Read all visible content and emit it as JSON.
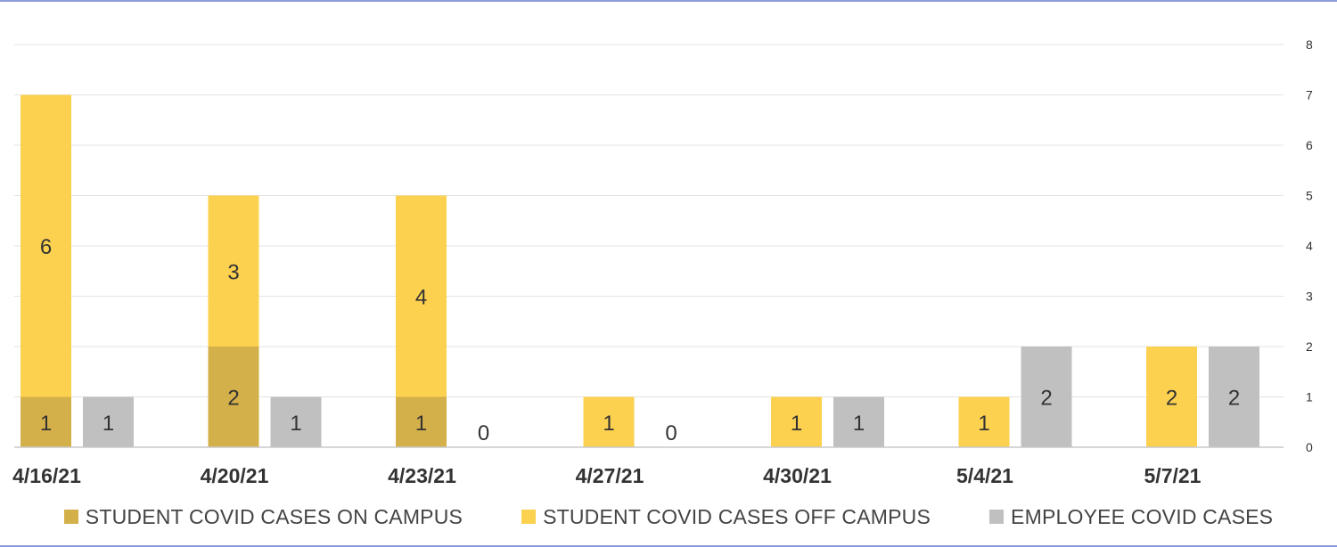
{
  "chart_data": {
    "type": "bar",
    "categories": [
      "4/16/21",
      "4/20/21",
      "4/23/21",
      "4/27/21",
      "4/30/21",
      "5/4/21",
      "5/7/21"
    ],
    "series": [
      {
        "name": "STUDENT COVID CASES ON CAMPUS",
        "values": [
          1,
          2,
          1,
          0,
          0,
          0,
          0
        ],
        "color": "#d4b04a",
        "stack": "students"
      },
      {
        "name": "STUDENT COVID CASES OFF CAMPUS",
        "values": [
          6,
          3,
          4,
          1,
          1,
          1,
          2
        ],
        "color": "#fcd14f",
        "stack": "students"
      },
      {
        "name": "EMPLOYEE COVID CASES",
        "values": [
          1,
          1,
          0,
          0,
          1,
          2,
          2
        ],
        "color": "#c0c0c0",
        "stack": "employees"
      }
    ],
    "data_labels": {
      "students_on_campus": [
        "1",
        "2",
        "1",
        "",
        "",
        "",
        ""
      ],
      "students_off_campus": [
        "6",
        "3",
        "4",
        "1",
        "1",
        "1",
        "2"
      ],
      "employees": [
        "1",
        "1",
        "0",
        "0",
        "1",
        "2",
        "2"
      ]
    },
    "y_ticks": [
      "0",
      "1",
      "2",
      "3",
      "4",
      "5",
      "6",
      "7",
      "8"
    ],
    "ylim": [
      0,
      8
    ],
    "y_axis_side": "right",
    "grid": true,
    "legend_position": "bottom",
    "title": "",
    "xlabel": "",
    "ylabel": ""
  }
}
